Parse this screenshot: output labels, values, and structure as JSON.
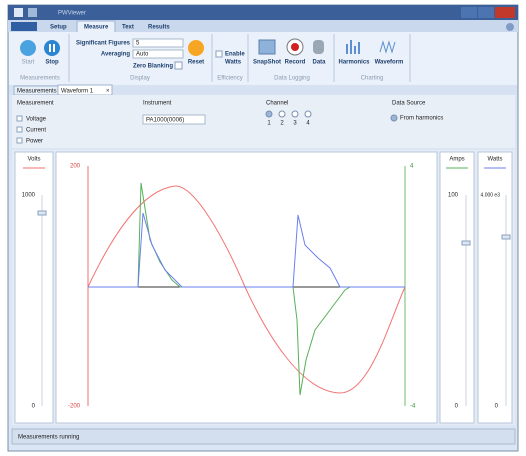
{
  "window": {
    "title": "PWViewer"
  },
  "ribbon": {
    "tabs": [
      "Setup",
      "Measure",
      "Text",
      "Results"
    ],
    "groups": [
      {
        "label": "Measurements",
        "items": [
          "Start",
          "Stop"
        ]
      },
      {
        "label": "Display",
        "items": [
          "Significant Figures",
          "5",
          "Averaging",
          "Auto",
          "Zero Blanking",
          "Reset"
        ]
      },
      {
        "label": "Efficiency",
        "items": [
          "Enable",
          "Watts"
        ]
      },
      {
        "label": "Data Logging",
        "items": [
          "SnapShot",
          "Record",
          "Data"
        ]
      },
      {
        "label": "Charting",
        "items": [
          "Harmonics",
          "Waveform"
        ]
      }
    ]
  },
  "document_tabs": [
    "Measurements",
    "Waveform 1"
  ],
  "settings": {
    "measurement": {
      "label": "Measurement",
      "options": [
        "Voltage",
        "Current",
        "Power"
      ]
    },
    "instrument": {
      "label": "Instrument",
      "value": "PA1000(0006)"
    },
    "channel": {
      "label": "Channel",
      "options": [
        "1",
        "2",
        "3",
        "4"
      ]
    },
    "data_source": {
      "label": "Data Source",
      "option": "From harmonics"
    }
  },
  "panels": {
    "volts": {
      "label": "Volts",
      "top": "1000",
      "bottom": "0"
    },
    "amps": {
      "label": "Amps",
      "top": "100",
      "bottom": "0"
    },
    "watts": {
      "label": "Watts",
      "top": "4.000 e3",
      "bottom": "0"
    }
  },
  "waveform": {
    "left_top": "200",
    "left_bottom": "-200",
    "right_top": "4",
    "right_bottom": "-4"
  },
  "status": "Measurements running"
}
